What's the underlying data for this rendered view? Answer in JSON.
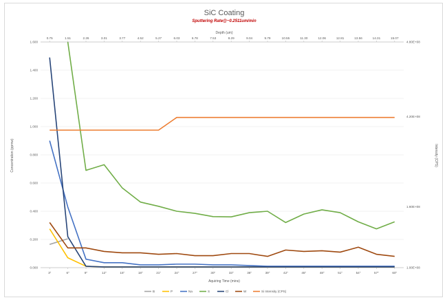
{
  "chart_data": {
    "type": "line",
    "title": "SiC Coating",
    "subtitle": "Sputtering Rate@~0.2511um/min",
    "xlabel": "Aquiring Time (mins)",
    "x2label": "Depth (um)",
    "ylabel": "Concentration (ppmw)",
    "y2label": "Intensity (CPS)",
    "x": [
      "3\"",
      "6\"",
      "9\"",
      "12\"",
      "15\"",
      "18\"",
      "21\"",
      "24\"",
      "27\"",
      "30\"",
      "33\"",
      "36\"",
      "39\"",
      "42\"",
      "45\"",
      "48\"",
      "51\"",
      "54\"",
      "57\"",
      "60\""
    ],
    "x2_ticks": [
      "0.75",
      "1.51",
      "2.26",
      "3.01",
      "3.77",
      "4.52",
      "5.27",
      "6.03",
      "6.78",
      "7.53",
      "8.29",
      "9.04",
      "9.79",
      "10.55",
      "11.30",
      "12.06",
      "12.81",
      "13.56",
      "14.31",
      "15.07"
    ],
    "y_ticks": [
      "0.000",
      "0.200",
      "0.400",
      "0.600",
      "0.800",
      "1.000",
      "1.200",
      "1.400",
      "1.600"
    ],
    "ylim": [
      0,
      1.6
    ],
    "y2_ticks": [
      "1.00E+08",
      "1.60E+08",
      "4.20E+08",
      "4.80E+08"
    ],
    "y2lim": [
      0,
      1.6
    ],
    "grid": true,
    "legend_position": "bottom",
    "series": [
      {
        "name": "B",
        "color": "#a5a5a5",
        "axis": "left",
        "values": [
          0.165,
          0.205,
          null,
          null,
          null,
          null,
          null,
          null,
          null,
          null,
          null,
          null,
          null,
          null,
          null,
          null,
          null,
          null,
          null,
          null
        ]
      },
      {
        "name": "P",
        "color": "#ffc000",
        "axis": "left",
        "values": [
          0.275,
          0.07,
          0.01,
          0.005,
          0.005,
          0.005,
          0.005,
          0.005,
          0.005,
          0.005,
          0.005,
          0.005,
          0.005,
          0.005,
          0.005,
          0.005,
          0.005,
          0.005,
          0.005,
          0.005
        ]
      },
      {
        "name": "Na",
        "color": "#4472c4",
        "axis": "left",
        "values": [
          0.9,
          0.43,
          0.06,
          0.035,
          0.035,
          0.02,
          0.02,
          0.025,
          0.025,
          0.02,
          0.02,
          0.015,
          0.01,
          0.01,
          0.01,
          0.01,
          0.01,
          0.01,
          0.01,
          0.01
        ]
      },
      {
        "name": "S",
        "color": "#70ad47",
        "axis": "left",
        "values": [
          null,
          1.6,
          0.69,
          0.73,
          0.565,
          0.465,
          0.435,
          0.4,
          0.385,
          0.362,
          0.36,
          0.39,
          0.4,
          0.32,
          0.38,
          0.41,
          0.39,
          0.325,
          0.275,
          0.325
        ]
      },
      {
        "name": "Cl",
        "color": "#264478",
        "axis": "left",
        "values": [
          1.49,
          0.22,
          0.01,
          0.005,
          0.005,
          0.005,
          0.005,
          0.005,
          0.005,
          0.005,
          0.005,
          0.005,
          0.005,
          0.005,
          0.005,
          0.005,
          0.005,
          0.005,
          0.005,
          0.005
        ]
      },
      {
        "name": "W",
        "color": "#9e480e",
        "axis": "left",
        "values": [
          0.32,
          0.14,
          0.14,
          0.115,
          0.105,
          0.105,
          0.095,
          0.1,
          0.085,
          0.085,
          0.1,
          0.1,
          0.08,
          0.125,
          0.115,
          0.12,
          0.11,
          0.145,
          0.095,
          0.08
        ]
      },
      {
        "name": "Si Intensity (CPS)",
        "color": "#ed7d31",
        "axis": "right",
        "values": [
          0.975,
          0.975,
          0.975,
          0.975,
          0.975,
          0.975,
          0.975,
          1.065,
          1.065,
          1.065,
          1.065,
          1.065,
          1.065,
          1.065,
          1.065,
          1.065,
          1.065,
          1.065,
          1.065,
          1.065
        ]
      }
    ]
  }
}
